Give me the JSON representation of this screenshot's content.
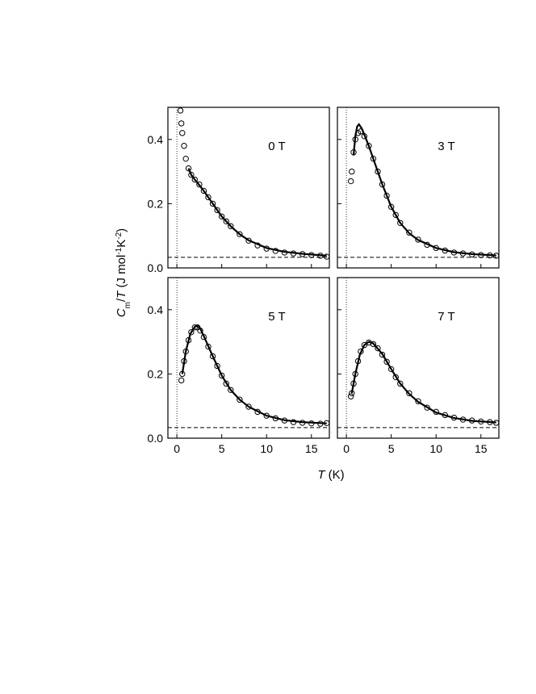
{
  "ylabel": [
    "C",
    "m",
    "/",
    "T",
    " (J mol",
    "-1",
    "K",
    "-2",
    ")"
  ],
  "xlabel": [
    "T",
    " (K)"
  ],
  "chart_data": [
    {
      "type": "scatter",
      "label": "0 T",
      "xlim": [
        -1,
        17
      ],
      "ylim": [
        0,
        0.5
      ],
      "xticks": [
        0,
        5,
        10,
        15
      ],
      "yticks": [
        {
          "value": 0,
          "label": "0.0"
        },
        0.2,
        0.4
      ],
      "show_xticklabels": false,
      "show_yticklabels": true,
      "color": "#000000",
      "hline": 0.033,
      "vline": 0,
      "x": [
        0.4,
        0.5,
        0.6,
        0.8,
        1.0,
        1.3,
        1.6,
        2,
        2.5,
        3,
        3.5,
        4,
        4.5,
        5,
        5.5,
        6,
        7,
        8,
        9,
        10,
        11,
        12,
        13,
        14,
        15,
        16,
        16.7
      ],
      "values": [
        0.49,
        0.45,
        0.42,
        0.38,
        0.34,
        0.31,
        0.29,
        0.275,
        0.26,
        0.24,
        0.22,
        0.2,
        0.18,
        0.16,
        0.145,
        0.13,
        0.105,
        0.085,
        0.07,
        0.06,
        0.053,
        0.048,
        0.045,
        0.043,
        0.04,
        0.038,
        0.035
      ],
      "fit": {
        "x": [
          1.3,
          1.6,
          2,
          2.5,
          3,
          4,
          5,
          6,
          7,
          8,
          10,
          12,
          14,
          16.7
        ],
        "values": [
          0.31,
          0.29,
          0.275,
          0.258,
          0.24,
          0.2,
          0.16,
          0.13,
          0.105,
          0.086,
          0.062,
          0.05,
          0.044,
          0.038
        ]
      }
    },
    {
      "type": "scatter",
      "label": "3 T",
      "xlim": [
        -1,
        17
      ],
      "ylim": [
        0,
        0.5
      ],
      "xticks": [
        0,
        5,
        10,
        15
      ],
      "yticks": [
        {
          "value": 0,
          "label": "0.0"
        },
        0.2,
        0.4
      ],
      "show_xticklabels": false,
      "show_yticklabels": false,
      "color": "#000000",
      "hline": 0.033,
      "vline": 0,
      "x": [
        0.5,
        0.6,
        0.8,
        1.0,
        1.3,
        1.6,
        2,
        2.5,
        3,
        3.5,
        4,
        4.5,
        5,
        5.5,
        6,
        7,
        8,
        9,
        10,
        11,
        12,
        13,
        14,
        15,
        16,
        16.7
      ],
      "values": [
        0.27,
        0.3,
        0.36,
        0.4,
        0.42,
        0.425,
        0.41,
        0.38,
        0.34,
        0.3,
        0.26,
        0.225,
        0.19,
        0.165,
        0.14,
        0.11,
        0.088,
        0.072,
        0.062,
        0.054,
        0.048,
        0.045,
        0.042,
        0.04,
        0.039,
        0.038
      ],
      "fit": {
        "x": [
          0.8,
          1,
          1.2,
          1.4,
          1.7,
          2,
          2.5,
          3,
          4,
          5,
          6,
          7,
          8,
          10,
          12,
          14,
          16.7
        ],
        "values": [
          0.35,
          0.41,
          0.44,
          0.447,
          0.435,
          0.415,
          0.38,
          0.34,
          0.26,
          0.19,
          0.14,
          0.108,
          0.087,
          0.062,
          0.049,
          0.043,
          0.039
        ]
      }
    },
    {
      "type": "scatter",
      "label": "5 T",
      "xlim": [
        -1,
        17
      ],
      "ylim": [
        0,
        0.5
      ],
      "xticks": [
        0,
        5,
        10,
        15
      ],
      "yticks": [
        {
          "value": 0,
          "label": "0.0"
        },
        0.2,
        0.4
      ],
      "show_xticklabels": true,
      "show_yticklabels": true,
      "color": "#000000",
      "hline": 0.033,
      "vline": 0,
      "x": [
        0.5,
        0.6,
        0.8,
        1.0,
        1.3,
        1.6,
        2,
        2.3,
        2.6,
        3,
        3.5,
        4,
        4.5,
        5,
        5.5,
        6,
        7,
        8,
        9,
        10,
        11,
        12,
        13,
        14,
        15,
        16,
        16.7
      ],
      "values": [
        0.18,
        0.2,
        0.24,
        0.27,
        0.305,
        0.33,
        0.345,
        0.345,
        0.335,
        0.315,
        0.285,
        0.255,
        0.225,
        0.195,
        0.17,
        0.15,
        0.12,
        0.098,
        0.082,
        0.07,
        0.062,
        0.055,
        0.05,
        0.048,
        0.046,
        0.045,
        0.047
      ],
      "fit": {
        "x": [
          0.6,
          1,
          1.5,
          2,
          2.3,
          2.6,
          3,
          4,
          5,
          6,
          7,
          8,
          10,
          12,
          14,
          16.7
        ],
        "values": [
          0.2,
          0.27,
          0.325,
          0.347,
          0.35,
          0.342,
          0.318,
          0.255,
          0.195,
          0.15,
          0.12,
          0.098,
          0.07,
          0.056,
          0.05,
          0.046
        ]
      }
    },
    {
      "type": "scatter",
      "label": "7 T",
      "xlim": [
        -1,
        17
      ],
      "ylim": [
        0,
        0.5
      ],
      "xticks": [
        0,
        5,
        10,
        15
      ],
      "yticks": [
        {
          "value": 0,
          "label": "0.0"
        },
        0.2,
        0.4
      ],
      "show_xticklabels": true,
      "show_yticklabels": false,
      "color": "#000000",
      "hline": 0.033,
      "vline": 0,
      "x": [
        0.5,
        0.6,
        0.8,
        1.0,
        1.3,
        1.6,
        2,
        2.5,
        3,
        3.5,
        4,
        4.5,
        5,
        5.5,
        6,
        7,
        8,
        9,
        10,
        11,
        12,
        13,
        14,
        15,
        16,
        16.7
      ],
      "values": [
        0.13,
        0.14,
        0.17,
        0.2,
        0.24,
        0.27,
        0.29,
        0.298,
        0.293,
        0.28,
        0.26,
        0.238,
        0.215,
        0.19,
        0.17,
        0.14,
        0.115,
        0.095,
        0.082,
        0.072,
        0.064,
        0.058,
        0.055,
        0.052,
        0.05,
        0.048
      ],
      "fit": {
        "x": [
          0.6,
          1,
          1.5,
          2,
          2.5,
          3,
          4,
          5,
          6,
          7,
          8,
          10,
          12,
          14,
          16.7
        ],
        "values": [
          0.14,
          0.2,
          0.26,
          0.29,
          0.3,
          0.295,
          0.262,
          0.215,
          0.17,
          0.138,
          0.113,
          0.08,
          0.063,
          0.054,
          0.049
        ]
      }
    }
  ]
}
